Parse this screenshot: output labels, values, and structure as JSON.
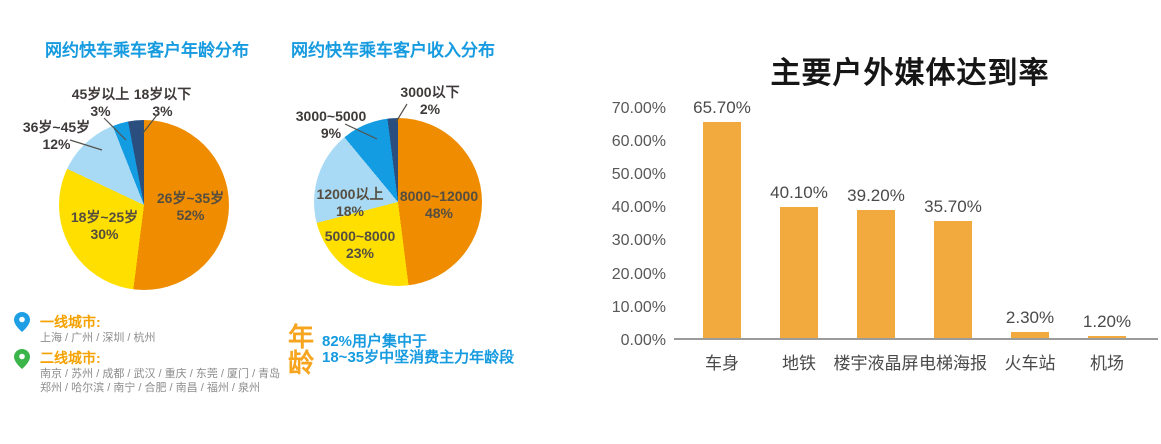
{
  "chart_data": [
    {
      "type": "pie",
      "name": "age-distribution",
      "title": "网约快车乘车客户年龄分布",
      "start_angle_deg": 0,
      "direction": "clockwise",
      "slices": [
        {
          "label": "26岁~35岁",
          "pct_label": "52%",
          "value": 52,
          "color": "#EF8C00"
        },
        {
          "label": "18岁~25岁",
          "pct_label": "30%",
          "value": 30,
          "color": "#FFDF00"
        },
        {
          "label": "36岁~45岁",
          "pct_label": "12%",
          "value": 12,
          "color": "#A8DAF5"
        },
        {
          "label": "45岁以上",
          "pct_label": "3%",
          "value": 3,
          "color": "#149CE3"
        },
        {
          "label": "18岁以下",
          "pct_label": "3%",
          "value": 3,
          "color": "#2A4F7E"
        }
      ]
    },
    {
      "type": "pie",
      "name": "income-distribution",
      "title": "网约快车乘车客户收入分布",
      "start_angle_deg": 0,
      "direction": "clockwise",
      "slices": [
        {
          "label": "8000~12000",
          "pct_label": "48%",
          "value": 48,
          "color": "#EF8C00"
        },
        {
          "label": "5000~8000",
          "pct_label": "23%",
          "value": 23,
          "color": "#FFDF00"
        },
        {
          "label": "12000以上",
          "pct_label": "18%",
          "value": 18,
          "color": "#A8DAF5"
        },
        {
          "label": "3000~5000",
          "pct_label": "9%",
          "value": 9,
          "color": "#149CE3"
        },
        {
          "label": "3000以下",
          "pct_label": "2%",
          "value": 2,
          "color": "#2A4F7E"
        }
      ]
    },
    {
      "type": "bar",
      "name": "outdoor-media-reach",
      "title": "主要户外媒体达到率",
      "categories": [
        "车身",
        "地铁",
        "楼宇液晶屏",
        "电梯海报",
        "火车站",
        "机场"
      ],
      "values": [
        65.7,
        40.1,
        39.2,
        35.7,
        2.3,
        1.2
      ],
      "value_labels": [
        "65.70%",
        "40.10%",
        "39.20%",
        "35.70%",
        "2.30%",
        "1.20%"
      ],
      "ylim": [
        0,
        70
      ],
      "ytick_labels": [
        "70.00%",
        "60.00%",
        "50.00%",
        "40.00%",
        "30.00%",
        "20.00%",
        "10.00%",
        "0.00%"
      ],
      "bar_color": "#F2A93D",
      "grid": false,
      "legend_position": "none"
    }
  ],
  "footnotes": {
    "tier1": {
      "label": "一线城市:",
      "cities": "上海 / 广州 / 深圳 / 杭州"
    },
    "tier2": {
      "label": "二线城市:",
      "cities_line1": "南京 / 苏州 / 成都 / 武汉 / 重庆 / 东莞 / 厦门 / 青岛",
      "cities_line2": "郑州 / 哈尔滨 / 南宁 / 合肥 / 南昌 / 福州 / 泉州"
    },
    "age_note": {
      "heading": "年龄",
      "line1": "82%用户集中于",
      "line2": "18~35岁中坚消费主力年龄段"
    }
  },
  "colors": {
    "title_blue": "#169BE0",
    "pie_orange": "#EF8C00",
    "pie_yellow": "#FFDF00",
    "pie_light_blue": "#A8DAF5",
    "pie_bright_blue": "#149CE3",
    "pie_navy": "#2A4F7E",
    "bar_orange": "#F2A93D",
    "orange_text": "#F5A100",
    "pin_blue": "#1E9FE5",
    "pin_green": "#3BB54A"
  }
}
